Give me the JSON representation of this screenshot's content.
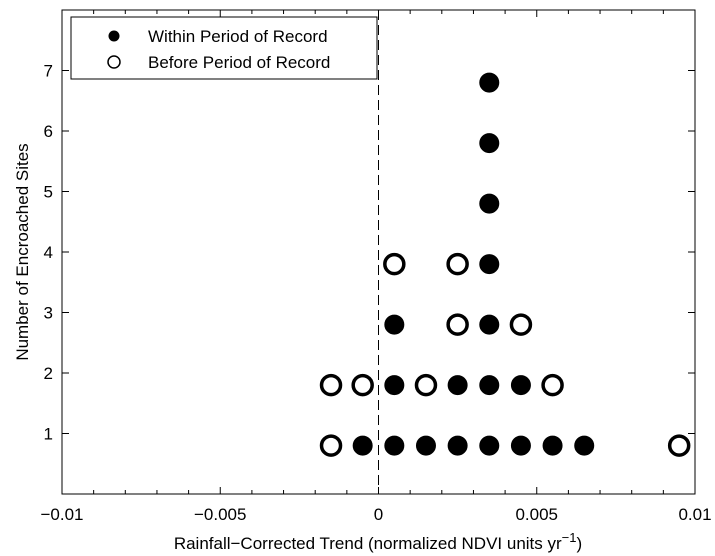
{
  "chart_data": {
    "type": "scatter",
    "xlabel": "Rainfall−Corrected Trend (normalized NDVI units yr",
    "xlabel_superscript": "−1",
    "xlabel_close": ")",
    "ylabel": "Number of Encroached Sites",
    "xlim": [
      -0.01,
      0.01
    ],
    "ylim": [
      0,
      8
    ],
    "x_ticks": [
      -0.01,
      -0.005,
      0,
      0.005,
      0.01
    ],
    "x_tick_labels": [
      "−0.01",
      "−0.005",
      "0",
      "0.005",
      "0.01"
    ],
    "y_ticks": [
      1,
      2,
      3,
      4,
      5,
      6,
      7
    ],
    "y_tick_labels": [
      "1",
      "2",
      "3",
      "4",
      "5",
      "6",
      "7"
    ],
    "reference_line_x": 0,
    "legend_position": "top-left",
    "series": [
      {
        "name": "Within Period of Record",
        "marker": "filled-circle",
        "color": "#000000",
        "points": [
          {
            "x": -0.0005,
            "y": 0.8
          },
          {
            "x": 0.0005,
            "y": 0.8
          },
          {
            "x": 0.0015,
            "y": 0.8
          },
          {
            "x": 0.0025,
            "y": 0.8
          },
          {
            "x": 0.0035,
            "y": 0.8
          },
          {
            "x": 0.0045,
            "y": 0.8
          },
          {
            "x": 0.0055,
            "y": 0.8
          },
          {
            "x": 0.0065,
            "y": 0.8
          },
          {
            "x": 0.0005,
            "y": 1.8
          },
          {
            "x": 0.0025,
            "y": 1.8
          },
          {
            "x": 0.0035,
            "y": 1.8
          },
          {
            "x": 0.0045,
            "y": 1.8
          },
          {
            "x": 0.0005,
            "y": 2.8
          },
          {
            "x": 0.0035,
            "y": 2.8
          },
          {
            "x": 0.0035,
            "y": 3.8
          },
          {
            "x": 0.0035,
            "y": 4.8
          },
          {
            "x": 0.0035,
            "y": 5.8
          },
          {
            "x": 0.0035,
            "y": 6.8
          }
        ]
      },
      {
        "name": "Before Period of Record",
        "marker": "open-circle",
        "color": "#000000",
        "points": [
          {
            "x": -0.0015,
            "y": 0.8
          },
          {
            "x": 0.0095,
            "y": 0.8
          },
          {
            "x": -0.0015,
            "y": 1.8
          },
          {
            "x": -0.0005,
            "y": 1.8
          },
          {
            "x": 0.0015,
            "y": 1.8
          },
          {
            "x": 0.0055,
            "y": 1.8
          },
          {
            "x": 0.0025,
            "y": 2.8
          },
          {
            "x": 0.0045,
            "y": 2.8
          },
          {
            "x": 0.0005,
            "y": 3.8
          },
          {
            "x": 0.0025,
            "y": 3.8
          }
        ]
      }
    ]
  }
}
